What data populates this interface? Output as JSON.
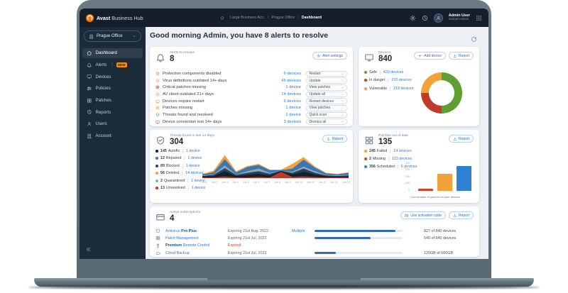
{
  "topbar": {
    "brand_bold": "Avast",
    "brand_rest": " Business Hub",
    "breadcrumb": [
      {
        "label": "Large Business Acc.",
        "sep": "",
        "current": false
      },
      {
        "label": "Prague Office",
        "sep": "/",
        "current": false
      },
      {
        "label": "Dashboard",
        "sep": "/",
        "current": true
      }
    ],
    "user_name": "Admin User",
    "user_role": "Global Admin"
  },
  "sidebar": {
    "org_selector": "Prague Office",
    "items": [
      {
        "icon": "home",
        "label": "Dashboard",
        "sep": "",
        "badge": "",
        "active": true
      },
      {
        "icon": "bell",
        "label": "Alerts",
        "sep": "|",
        "badge": "NEW",
        "active": false
      },
      {
        "icon": "monitor",
        "label": "Devices",
        "sep": "",
        "badge": "",
        "active": false
      },
      {
        "icon": "sliders",
        "label": "Policies",
        "sep": "",
        "badge": "",
        "active": false
      },
      {
        "icon": "grid",
        "label": "Patches",
        "sep": "",
        "badge": "",
        "active": false
      },
      {
        "icon": "report",
        "label": "Reports",
        "sep": "",
        "badge": "",
        "active": false
      },
      {
        "icon": "user",
        "label": "Users",
        "sep": "",
        "badge": "",
        "active": false
      },
      {
        "icon": "building",
        "label": "Account",
        "sep": "",
        "badge": "",
        "active": false
      }
    ]
  },
  "greeting": "Good morning Admin, you have 8 alerts to resolve",
  "alerts_card": {
    "title": "Alerts to resolve",
    "count": "8",
    "settings_label": "Alert settings",
    "rows": [
      {
        "icon": "shield-alert",
        "color": "#e4573d",
        "label": "Protection components disabled",
        "devices": "6 devices",
        "action": "Restart"
      },
      {
        "icon": "shield-alert",
        "color": "#f0883b",
        "label": "Virus definitions outdated 14+ days",
        "devices": "45 devices",
        "action": "Update"
      },
      {
        "icon": "grid",
        "color": "#d04330",
        "label": "Critical patches missing",
        "devices": "1 device",
        "action": "View patches"
      },
      {
        "icon": "shield-alert",
        "color": "#f0883b",
        "label": "AV client outdated 21+ days",
        "devices": "14 devices",
        "action": "Update all"
      },
      {
        "icon": "monitor",
        "color": "#f0883b",
        "label": "Devices require restart",
        "devices": "6 devices",
        "action": "Restart devices"
      },
      {
        "icon": "grid",
        "color": "#f2b13c",
        "label": "Patches missing",
        "devices": "1 device",
        "action": "View patches"
      },
      {
        "icon": "shield-check",
        "color": "#3878b8",
        "label": "Threats found and resolved",
        "devices": "1 device",
        "action": "Quick scan"
      },
      {
        "icon": "monitor",
        "color": "#d04330",
        "label": "Device connection lost 14+ days",
        "devices": "3 devices",
        "action": "Dismiss all"
      }
    ]
  },
  "devices_card": {
    "title": "Devices",
    "count": "840",
    "add_label": "Add device",
    "report_label": "Report",
    "legend": [
      {
        "label": "Safe",
        "value": "420 devices",
        "color": "#5f9e33"
      },
      {
        "label": "In danger",
        "value": "210 devices",
        "color": "#c23a2c"
      },
      {
        "label": "Vulnerable",
        "value": "210 devices",
        "color": "#f1a33a"
      }
    ]
  },
  "threats_card": {
    "title": "Threats found in last 14 days",
    "count": "304",
    "report_label": "Report",
    "legend": [
      {
        "count": "145",
        "label": "Autofix",
        "devices": "1 device",
        "color": "#16212c"
      },
      {
        "count": "12",
        "label": "Repaired",
        "devices": "1 device",
        "color": "#3878b8"
      },
      {
        "count": "89",
        "label": "Blocked",
        "devices": "1 device",
        "color": "#27425c"
      },
      {
        "count": "56",
        "label": "Deleted",
        "devices": "14 devices",
        "color": "#f2a33c"
      },
      {
        "count": "2",
        "label": "Quarantined",
        "devices": "1 device",
        "color": "#98a4ae"
      },
      {
        "count": "13",
        "label": "Unresolved",
        "devices": "1 device",
        "color": "#c0392b"
      }
    ]
  },
  "patches_card": {
    "title": "Patches out of date",
    "count": "135",
    "report_label": "Report",
    "legend": [
      {
        "count": "245",
        "label": "Failed",
        "devices": "14 devices",
        "color": "#f1a33a"
      },
      {
        "count": "2",
        "label": "Missing",
        "devices": "123 devices",
        "color": "#d04330"
      },
      {
        "count": "356",
        "label": "Scheduled",
        "devices": "6 devices",
        "color": "#2f7fd3"
      }
    ],
    "caption": "Current state of patches on your devices"
  },
  "subscriptions_card": {
    "title": "Active subscriptions",
    "count": "4",
    "activation_label": "Use activation code",
    "report_label": "Report",
    "rows": [
      {
        "icon": "shield",
        "name_bold_pre": "",
        "name_plain": "Antivirus ",
        "name_bold_post": "Pro Plus",
        "expiry": "Expiring 21st Aug, 2022",
        "expired": false,
        "link": "Multiple",
        "pct": "92%",
        "usage": "827 of 840 devices"
      },
      {
        "icon": "grid",
        "name_bold_pre": "",
        "name_plain": "Patch Management",
        "name_bold_post": "",
        "expiry": "Expiring 21st Jul, 2022",
        "expired": false,
        "link": "",
        "pct": "64%",
        "usage": "540 of 840 devices"
      },
      {
        "icon": "remote",
        "name_bold_pre": "Premium",
        "name_plain": " Remote Control",
        "name_bold_post": "",
        "expiry": "Expired",
        "expired": true,
        "link": "",
        "pct": "",
        "usage": ""
      },
      {
        "icon": "cloud",
        "name_bold_pre": "",
        "name_plain": "Cloud Backup",
        "name_bold_post": "",
        "expiry": "Expiring 21st Jul, 2022",
        "expired": false,
        "link": "",
        "pct": "24%",
        "usage": "120GB of 500GB"
      }
    ]
  },
  "chart_data": [
    {
      "id": "devices_donut",
      "type": "pie",
      "title": "Devices",
      "categories": [
        "Safe",
        "In danger",
        "Vulnerable"
      ],
      "values": [
        420,
        210,
        210
      ],
      "colors": [
        "#5f9e33",
        "#c23a2c",
        "#f1a33a"
      ]
    },
    {
      "id": "threats_area",
      "type": "area",
      "stacked": true,
      "title": "Threats found in last 14 days",
      "x": [
        "Jun 1",
        "Jun 2",
        "Jun 3",
        "Jun 4",
        "Jun 5",
        "Jun 6",
        "Jun 7",
        "Jun 8",
        "Jun 9",
        "Jun 10",
        "Jun 11",
        "Jun 12",
        "Jun 13",
        "Jun 14"
      ],
      "ylim": [
        0,
        50
      ],
      "series": [
        {
          "name": "Unresolved",
          "color": "#c0392b",
          "values": [
            1,
            1,
            3,
            1,
            1,
            2,
            1,
            12,
            2,
            3,
            2,
            1,
            1,
            1
          ]
        },
        {
          "name": "Autofix",
          "color": "#16212c",
          "values": [
            2,
            3,
            10,
            3,
            5,
            6,
            4,
            1,
            5,
            9,
            5,
            2,
            2,
            2
          ]
        },
        {
          "name": "Blocked",
          "color": "#27425c",
          "values": [
            1,
            2,
            6,
            2,
            4,
            5,
            3,
            1,
            3,
            6,
            3,
            2,
            1,
            2
          ]
        },
        {
          "name": "Quarantined",
          "color": "#98a4ae",
          "values": [
            1,
            1,
            5,
            1,
            3,
            5,
            2,
            0,
            2,
            4,
            3,
            1,
            1,
            1
          ]
        },
        {
          "name": "Repaired",
          "color": "#3878b8",
          "values": [
            2,
            4,
            12,
            4,
            8,
            7,
            5,
            1,
            6,
            13,
            7,
            3,
            2,
            4
          ]
        },
        {
          "name": "Deleted",
          "color": "#f2a33c",
          "values": [
            1,
            3,
            8,
            2,
            2,
            2,
            1,
            1,
            9,
            5,
            2,
            1,
            1,
            1
          ]
        }
      ]
    },
    {
      "id": "patches_bar",
      "type": "bar",
      "title": "Current state of patches on your devices",
      "categories": [
        "Missing",
        "Failed",
        "Scheduled"
      ],
      "values": [
        2,
        245,
        356
      ],
      "colors": [
        "#d04330",
        "#f1a33a",
        "#2f7fd3"
      ],
      "ylim": [
        0,
        400
      ],
      "yticks": [
        400,
        300,
        200,
        100,
        0
      ]
    }
  ]
}
